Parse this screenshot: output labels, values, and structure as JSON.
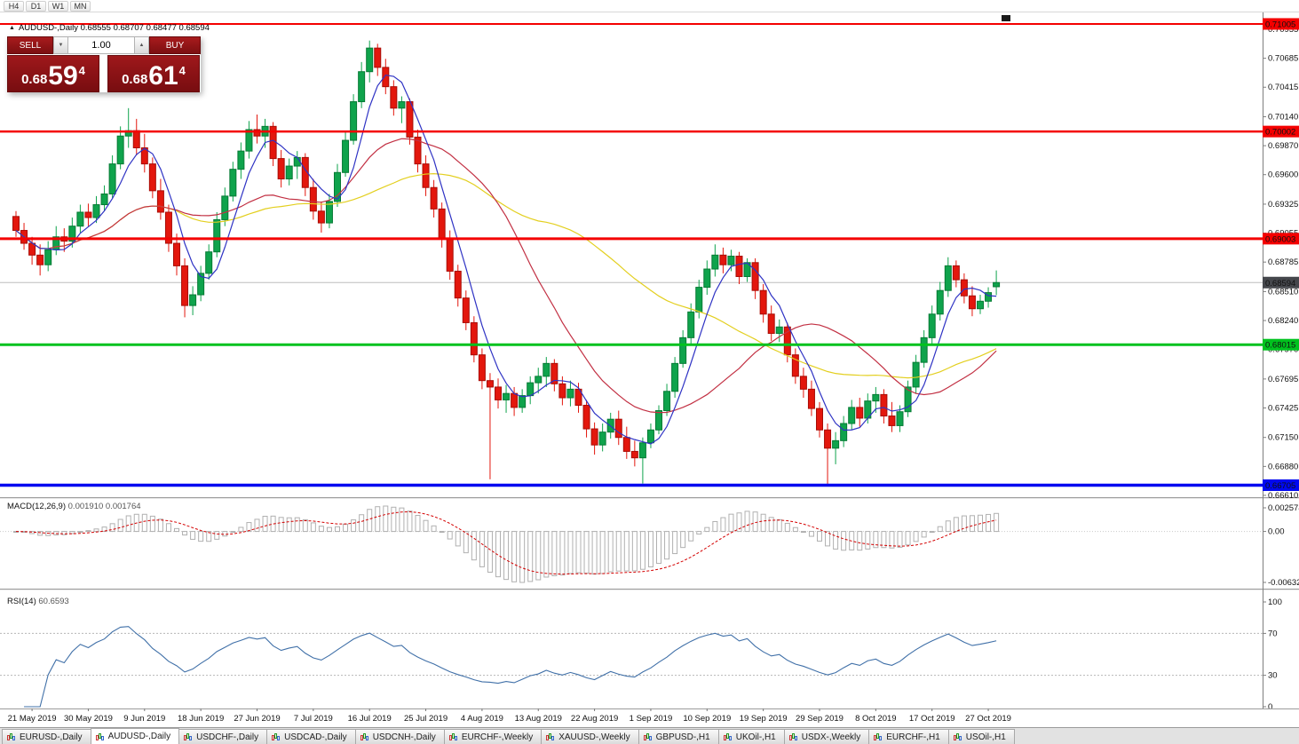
{
  "timeframe_toolbar": {
    "items": [
      "H4",
      "D1",
      "W1",
      "MN"
    ]
  },
  "chart": {
    "collapse_icon": "▲",
    "title": "AUDUSD-,Daily 0.68555 0.68707 0.68477 0.68594"
  },
  "trade_panel": {
    "sell_label": "SELL",
    "buy_label": "BUY",
    "volume": "1.00",
    "down_glyph": "▼",
    "up_glyph": "▲",
    "sell_price_prefix": "0.68",
    "sell_price_big": "59",
    "sell_price_point": "4",
    "buy_price_prefix": "0.68",
    "buy_price_big": "61",
    "buy_price_point": "4",
    "panel_color": "#9e181b"
  },
  "price_axis": {
    "labels": [
      "0.70955",
      "0.70685",
      "0.70415",
      "0.70140",
      "0.69870",
      "0.69600",
      "0.69325",
      "0.69055",
      "0.68785",
      "0.68510",
      "0.68240",
      "0.67970",
      "0.67695",
      "0.67425",
      "0.67150",
      "0.66880",
      "0.66610"
    ]
  },
  "hlines": [
    {
      "price": 0.71005,
      "label": "0.71005",
      "color": "#f40000",
      "width": 2
    },
    {
      "price": 0.70002,
      "label": "0.70002",
      "color": "#f40000",
      "width": 2.5
    },
    {
      "price": 0.69003,
      "label": "0.69003",
      "color": "#f40000",
      "width": 3
    },
    {
      "price": 0.68015,
      "label": "0.68015",
      "color": "#00c21e",
      "width": 3
    },
    {
      "price": 0.66705,
      "label": "0.66705",
      "color": "#0008f0",
      "width": 3.5
    }
  ],
  "current_price": {
    "value": 0.68594,
    "label": "0.68594",
    "tag_color": "#45474c"
  },
  "chart_data": {
    "type": "candlestick",
    "symbol": "AUDUSD-",
    "period": "Daily",
    "ohlc_current": {
      "open": 0.68555,
      "high": 0.68707,
      "low": 0.68477,
      "close": 0.68594
    },
    "y_axis_range": [
      0.6655,
      0.7123
    ],
    "up_color": "#0fa34c",
    "down_color": "#e3170d",
    "up_border": "#067a34",
    "down_border": "#a80d06",
    "moving_averages": [
      {
        "period": 5,
        "color": "#2f33c4"
      },
      {
        "period": 20,
        "color": "#c23043"
      },
      {
        "period": 45,
        "color": "#e3cf1f"
      }
    ],
    "label_start_index": 2,
    "label_step": 7,
    "dates": [
      "21 May 2019",
      "30 May 2019",
      "9 Jun 2019",
      "18 Jun 2019",
      "27 Jun 2019",
      "7 Jul 2019",
      "16 Jul 2019",
      "25 Jul 2019",
      "4 Aug 2019",
      "13 Aug 2019",
      "22 Aug 2019",
      "1 Sep 2019",
      "10 Sep 2019",
      "19 Sep 2019",
      "29 Sep 2019",
      "8 Oct 2019",
      "17 Oct 2019",
      "27 Oct 2019"
    ],
    "candles": [
      [
        0.6921,
        0.6926,
        0.6902,
        0.6908
      ],
      [
        0.6908,
        0.6915,
        0.689,
        0.6896
      ],
      [
        0.6896,
        0.6902,
        0.6876,
        0.6885
      ],
      [
        0.6885,
        0.6895,
        0.6866,
        0.6876
      ],
      [
        0.6876,
        0.6898,
        0.687,
        0.689
      ],
      [
        0.689,
        0.6912,
        0.6885,
        0.6902
      ],
      [
        0.6902,
        0.691,
        0.6888,
        0.6898
      ],
      [
        0.6898,
        0.692,
        0.6892,
        0.6912
      ],
      [
        0.6912,
        0.6932,
        0.6906,
        0.6925
      ],
      [
        0.6925,
        0.6933,
        0.6912,
        0.692
      ],
      [
        0.692,
        0.694,
        0.6915,
        0.6932
      ],
      [
        0.6932,
        0.695,
        0.6926,
        0.6942
      ],
      [
        0.6942,
        0.6978,
        0.6938,
        0.697
      ],
      [
        0.697,
        0.7005,
        0.6965,
        0.6996
      ],
      [
        0.6996,
        0.7022,
        0.6985,
        0.7001
      ],
      [
        0.7001,
        0.7012,
        0.6978,
        0.6985
      ],
      [
        0.6985,
        0.6998,
        0.6962,
        0.697
      ],
      [
        0.697,
        0.6976,
        0.6938,
        0.6945
      ],
      [
        0.6945,
        0.6956,
        0.6918,
        0.6925
      ],
      [
        0.6925,
        0.6932,
        0.6888,
        0.6896
      ],
      [
        0.6896,
        0.6905,
        0.6866,
        0.6875
      ],
      [
        0.6875,
        0.6882,
        0.6827,
        0.6838
      ],
      [
        0.6838,
        0.6856,
        0.6829,
        0.6848
      ],
      [
        0.6848,
        0.6875,
        0.6842,
        0.6868
      ],
      [
        0.6868,
        0.6895,
        0.6862,
        0.6888
      ],
      [
        0.6888,
        0.6925,
        0.6883,
        0.6918
      ],
      [
        0.6918,
        0.6948,
        0.6912,
        0.694
      ],
      [
        0.694,
        0.6972,
        0.6935,
        0.6965
      ],
      [
        0.6965,
        0.699,
        0.6956,
        0.6982
      ],
      [
        0.6982,
        0.701,
        0.6975,
        0.7002
      ],
      [
        0.7002,
        0.7016,
        0.6989,
        0.6996
      ],
      [
        0.6996,
        0.7012,
        0.6985,
        0.7005
      ],
      [
        0.7005,
        0.7009,
        0.6968,
        0.6975
      ],
      [
        0.6975,
        0.6983,
        0.6948,
        0.6956
      ],
      [
        0.6956,
        0.6975,
        0.695,
        0.6968
      ],
      [
        0.6968,
        0.6982,
        0.6956,
        0.6976
      ],
      [
        0.6976,
        0.698,
        0.694,
        0.6948
      ],
      [
        0.6948,
        0.6956,
        0.6918,
        0.6926
      ],
      [
        0.6926,
        0.6935,
        0.6906,
        0.6915
      ],
      [
        0.6915,
        0.6942,
        0.691,
        0.6935
      ],
      [
        0.6935,
        0.697,
        0.693,
        0.6962
      ],
      [
        0.6962,
        0.7,
        0.6958,
        0.6992
      ],
      [
        0.6992,
        0.7035,
        0.6988,
        0.7028
      ],
      [
        0.7028,
        0.7065,
        0.7022,
        0.7056
      ],
      [
        0.7056,
        0.7085,
        0.7046,
        0.7078
      ],
      [
        0.7078,
        0.7082,
        0.7052,
        0.706
      ],
      [
        0.706,
        0.7068,
        0.7035,
        0.7042
      ],
      [
        0.7042,
        0.7048,
        0.7015,
        0.7022
      ],
      [
        0.7022,
        0.7033,
        0.7008,
        0.7028
      ],
      [
        0.7028,
        0.7031,
        0.6988,
        0.6995
      ],
      [
        0.6995,
        0.7002,
        0.6962,
        0.697
      ],
      [
        0.697,
        0.6978,
        0.694,
        0.6948
      ],
      [
        0.6948,
        0.6955,
        0.692,
        0.6928
      ],
      [
        0.6928,
        0.6934,
        0.6892,
        0.69
      ],
      [
        0.69,
        0.6908,
        0.6862,
        0.687
      ],
      [
        0.687,
        0.6876,
        0.6837,
        0.6845
      ],
      [
        0.6845,
        0.6852,
        0.6815,
        0.6822
      ],
      [
        0.6822,
        0.6828,
        0.6785,
        0.6792
      ],
      [
        0.6792,
        0.6798,
        0.676,
        0.6768
      ],
      [
        0.6768,
        0.6775,
        0.6676,
        0.6762
      ],
      [
        0.6762,
        0.677,
        0.6742,
        0.675
      ],
      [
        0.675,
        0.6764,
        0.6738,
        0.6756
      ],
      [
        0.6756,
        0.6762,
        0.6735,
        0.6743
      ],
      [
        0.6743,
        0.676,
        0.6738,
        0.6754
      ],
      [
        0.6754,
        0.6772,
        0.6746,
        0.6766
      ],
      [
        0.6766,
        0.678,
        0.6756,
        0.6772
      ],
      [
        0.6772,
        0.679,
        0.6762,
        0.6784
      ],
      [
        0.6784,
        0.6788,
        0.6758,
        0.6765
      ],
      [
        0.6765,
        0.6772,
        0.6745,
        0.6752
      ],
      [
        0.6752,
        0.6768,
        0.6744,
        0.676
      ],
      [
        0.676,
        0.6766,
        0.6738,
        0.6745
      ],
      [
        0.6745,
        0.675,
        0.6715,
        0.6723
      ],
      [
        0.6723,
        0.6729,
        0.6699,
        0.6708
      ],
      [
        0.6708,
        0.6728,
        0.6702,
        0.672
      ],
      [
        0.672,
        0.6738,
        0.6714,
        0.6732
      ],
      [
        0.6732,
        0.674,
        0.6708,
        0.6715
      ],
      [
        0.6715,
        0.6725,
        0.6695,
        0.6702
      ],
      [
        0.6702,
        0.6712,
        0.6688,
        0.6696
      ],
      [
        0.6696,
        0.6715,
        0.6672,
        0.671
      ],
      [
        0.671,
        0.6728,
        0.6705,
        0.6722
      ],
      [
        0.6722,
        0.6745,
        0.6718,
        0.674
      ],
      [
        0.674,
        0.6765,
        0.6735,
        0.6758
      ],
      [
        0.6758,
        0.679,
        0.6752,
        0.6784
      ],
      [
        0.6784,
        0.6815,
        0.678,
        0.6808
      ],
      [
        0.6808,
        0.684,
        0.6802,
        0.6832
      ],
      [
        0.6832,
        0.6862,
        0.6826,
        0.6855
      ],
      [
        0.6855,
        0.688,
        0.6848,
        0.6872
      ],
      [
        0.6872,
        0.6895,
        0.6865,
        0.6885
      ],
      [
        0.6885,
        0.6892,
        0.6868,
        0.6876
      ],
      [
        0.6876,
        0.689,
        0.687,
        0.6884
      ],
      [
        0.6884,
        0.6888,
        0.6858,
        0.6865
      ],
      [
        0.6865,
        0.6882,
        0.686,
        0.6878
      ],
      [
        0.6878,
        0.6882,
        0.6844,
        0.6852
      ],
      [
        0.6852,
        0.6858,
        0.6822,
        0.683
      ],
      [
        0.683,
        0.6838,
        0.6805,
        0.6812
      ],
      [
        0.6812,
        0.6825,
        0.6804,
        0.6818
      ],
      [
        0.6818,
        0.6822,
        0.6785,
        0.6792
      ],
      [
        0.6792,
        0.6798,
        0.6765,
        0.6772
      ],
      [
        0.6772,
        0.678,
        0.6752,
        0.676
      ],
      [
        0.676,
        0.6768,
        0.6735,
        0.6742
      ],
      [
        0.6742,
        0.6748,
        0.6715,
        0.6722
      ],
      [
        0.6722,
        0.6728,
        0.6671,
        0.6705
      ],
      [
        0.6705,
        0.672,
        0.669,
        0.6712
      ],
      [
        0.6712,
        0.6735,
        0.6706,
        0.6728
      ],
      [
        0.6728,
        0.675,
        0.6722,
        0.6743
      ],
      [
        0.6743,
        0.6752,
        0.6725,
        0.6733
      ],
      [
        0.6733,
        0.6756,
        0.6728,
        0.6749
      ],
      [
        0.6749,
        0.6762,
        0.6738,
        0.6755
      ],
      [
        0.6755,
        0.676,
        0.6728,
        0.6735
      ],
      [
        0.6735,
        0.6748,
        0.672,
        0.6726
      ],
      [
        0.6726,
        0.6745,
        0.672,
        0.6739
      ],
      [
        0.6739,
        0.6768,
        0.6734,
        0.6762
      ],
      [
        0.6762,
        0.6792,
        0.6756,
        0.6785
      ],
      [
        0.6785,
        0.6815,
        0.678,
        0.6808
      ],
      [
        0.6808,
        0.6838,
        0.6802,
        0.683
      ],
      [
        0.683,
        0.686,
        0.6824,
        0.6852
      ],
      [
        0.6852,
        0.6883,
        0.6846,
        0.6875
      ],
      [
        0.6875,
        0.688,
        0.6855,
        0.6862
      ],
      [
        0.6862,
        0.6868,
        0.684,
        0.6847
      ],
      [
        0.6847,
        0.6856,
        0.6828,
        0.6835
      ],
      [
        0.6835,
        0.6848,
        0.683,
        0.6842
      ],
      [
        0.6842,
        0.6855,
        0.6836,
        0.685
      ],
      [
        0.68555,
        0.68707,
        0.68477,
        0.68594
      ]
    ]
  },
  "macd_panel": {
    "label": "MACD(12,26,9)",
    "value_main": "0.001910",
    "value_signal": "0.001764",
    "fast": 12,
    "slow": 26,
    "signal": 9,
    "axis_max": "0.002574",
    "axis_zero": "0.00",
    "axis_min": "-0.006326",
    "hist_color": "#b0b0b0",
    "signal_color": "#d40000"
  },
  "rsi_panel": {
    "label": "RSI(14)",
    "value": "60.6593",
    "period": 14,
    "axis": [
      "100",
      "70",
      "30",
      "0"
    ],
    "levels": [
      70,
      30
    ],
    "line_color": "#4070a8"
  },
  "date_axis": {
    "note": "labels shared with chart_data.dates"
  },
  "tabs": {
    "items": [
      {
        "label": "EURUSD-,Daily",
        "active": false
      },
      {
        "label": "AUDUSD-,Daily",
        "active": true
      },
      {
        "label": "USDCHF-,Daily",
        "active": false
      },
      {
        "label": "USDCAD-,Daily",
        "active": false
      },
      {
        "label": "USDCNH-,Daily",
        "active": false
      },
      {
        "label": "EURCHF-,Weekly",
        "active": false
      },
      {
        "label": "XAUUSD-,Weekly",
        "active": false
      },
      {
        "label": "GBPUSD-,H1",
        "active": false
      },
      {
        "label": "UKOil-,H1",
        "active": false
      },
      {
        "label": "USDX-,Weekly",
        "active": false
      },
      {
        "label": "EURCHF-,H1",
        "active": false
      },
      {
        "label": "USOil-,H1",
        "active": false
      }
    ]
  }
}
